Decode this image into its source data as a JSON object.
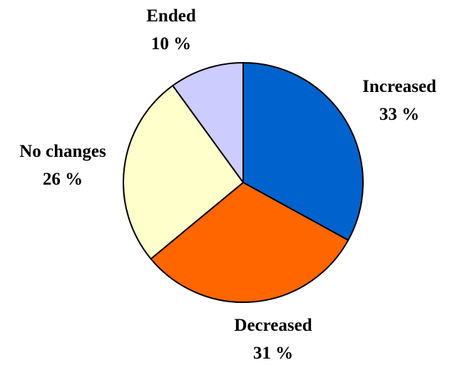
{
  "chart_data": {
    "type": "pie",
    "title": "",
    "start_angle_deg": 0,
    "direction": "clockwise",
    "slices": [
      {
        "label": "Increased",
        "value": 33,
        "value_text": "33 %",
        "color": "#0062CC"
      },
      {
        "label": "Decreased",
        "value": 31,
        "value_text": "31 %",
        "color": "#FF6600"
      },
      {
        "label": "No changes",
        "value": 26,
        "value_text": "26 %",
        "color": "#FFFFCC"
      },
      {
        "label": "Ended",
        "value": 10,
        "value_text": "10 %",
        "color": "#CCCCFF"
      }
    ],
    "outline_color": "#000000",
    "legend": "none"
  }
}
